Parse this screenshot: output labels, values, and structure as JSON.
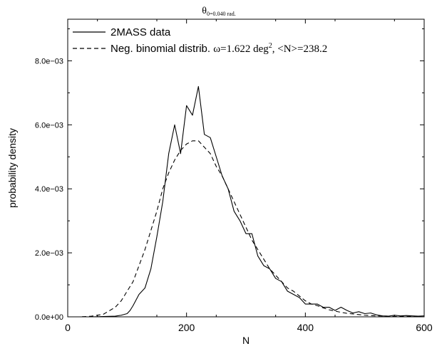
{
  "chart_data": {
    "type": "line",
    "title": {
      "main": "θ",
      "subscript": "0=0.040 rad."
    },
    "xlabel": "N",
    "ylabel": "probability density",
    "xlim": [
      0,
      600
    ],
    "ylim": [
      0,
      0.0093
    ],
    "x_ticks": [
      0,
      200,
      400,
      600
    ],
    "x_tick_labels": [
      "0",
      "200",
      "400",
      "600"
    ],
    "y_ticks": [
      0,
      0.002,
      0.004,
      0.006,
      0.008
    ],
    "y_tick_labels": [
      "0.0e+00",
      "2.0e−03",
      "4.0e−03",
      "6.0e−03",
      "8.0e−03"
    ],
    "grid": false,
    "legend_position": "top-left",
    "legend": [
      {
        "text": "2MASS data",
        "style": "solid"
      },
      {
        "prefix": "Neg. binomial distrib. ",
        "omega": "ω=1.622 deg",
        "sup": "2",
        "rest": ", <N>=238.2",
        "style": "dashed"
      }
    ],
    "series": [
      {
        "name": "2MASS data",
        "style": "solid",
        "x": [
          0,
          20,
          40,
          60,
          80,
          90,
          100,
          105,
          110,
          120,
          130,
          140,
          150,
          160,
          170,
          180,
          190,
          200,
          210,
          220,
          230,
          240,
          250,
          260,
          270,
          280,
          290,
          300,
          310,
          320,
          330,
          340,
          350,
          360,
          370,
          380,
          390,
          400,
          410,
          420,
          430,
          440,
          450,
          460,
          470,
          480,
          490,
          500,
          510,
          520,
          530,
          540,
          550,
          560,
          570,
          580,
          590,
          600
        ],
        "y": [
          0,
          0,
          0,
          1e-05,
          2e-05,
          5e-05,
          0.0001,
          0.0002,
          0.00035,
          0.0007,
          0.0009,
          0.0015,
          0.0025,
          0.0036,
          0.0051,
          0.006,
          0.0051,
          0.0066,
          0.0063,
          0.0072,
          0.0057,
          0.0056,
          0.005,
          0.0044,
          0.004,
          0.0033,
          0.003,
          0.0026,
          0.0026,
          0.0019,
          0.0016,
          0.0015,
          0.0012,
          0.0011,
          0.0008,
          0.0007,
          0.0006,
          0.0004,
          0.0004,
          0.0004,
          0.0003,
          0.0003,
          0.0002,
          0.0003,
          0.0002,
          0.00012,
          0.00016,
          0.0001,
          0.00012,
          6e-05,
          3e-05,
          2e-05,
          5e-05,
          3e-05,
          4e-05,
          3e-05,
          2e-05,
          3e-05
        ]
      },
      {
        "name": "Neg. binomial distrib.",
        "style": "dashed",
        "x": [
          0,
          20,
          40,
          60,
          80,
          90,
          100,
          110,
          120,
          130,
          140,
          150,
          160,
          170,
          180,
          190,
          200,
          210,
          220,
          230,
          240,
          250,
          260,
          270,
          280,
          290,
          300,
          310,
          320,
          330,
          340,
          350,
          360,
          370,
          380,
          390,
          400,
          410,
          420,
          430,
          440,
          450,
          460,
          470,
          480,
          490,
          500,
          520,
          540,
          560,
          580,
          600
        ],
        "y": [
          0,
          0,
          2e-05,
          8e-05,
          0.0003,
          0.0005,
          0.0008,
          0.0011,
          0.0016,
          0.0021,
          0.0027,
          0.0033,
          0.004,
          0.0045,
          0.0049,
          0.0052,
          0.0054,
          0.0055,
          0.0055,
          0.0053,
          0.0051,
          0.0047,
          0.0044,
          0.004,
          0.0036,
          0.0032,
          0.0028,
          0.0024,
          0.0021,
          0.0018,
          0.0015,
          0.0013,
          0.0011,
          0.0009,
          0.0008,
          0.00065,
          0.0005,
          0.0004,
          0.00035,
          0.00028,
          0.00022,
          0.00018,
          0.00014,
          0.00011,
          9e-05,
          7e-05,
          5e-05,
          3e-05,
          2e-05,
          1e-05,
          1e-05,
          0
        ]
      }
    ]
  }
}
